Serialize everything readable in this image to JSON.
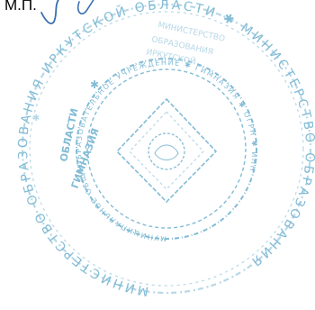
{
  "document": {
    "mp_label": "М.П.",
    "seal_text_outer": "МИНИСТЕРСТВО ОБРАЗОВАНИЯ ИРКУТСКОЙ ОБЛАСТИ",
    "seal_text_inner": "МУНИЦИПАЛЬНОЕ ОБЩЕОБРАЗОВАТЕЛЬНОЕ УЧРЕЖДЕНИЕ"
  },
  "colors": {
    "ink": "#000000",
    "seal": "#5aa6c8",
    "seal_light": "#9fcbe0",
    "signature": "#3a6fb0"
  }
}
